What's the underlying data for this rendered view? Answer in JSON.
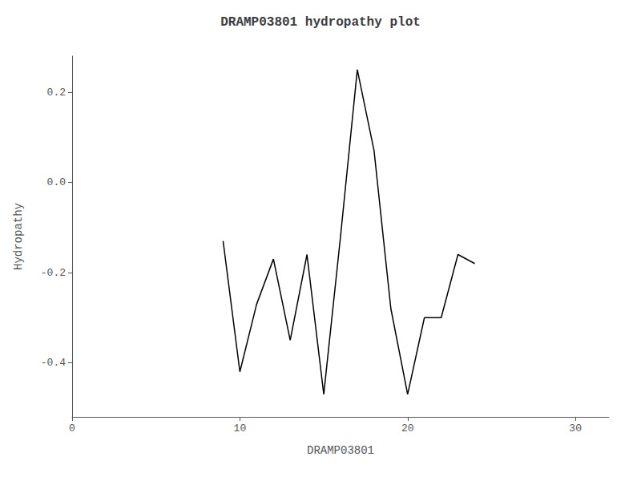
{
  "chart_data": {
    "type": "line",
    "title": "DRAMP03801 hydropathy plot",
    "xlabel": "DRAMP03801",
    "ylabel": "Hydropathy",
    "xlim": [
      0,
      32
    ],
    "ylim": [
      -0.52,
      0.28
    ],
    "xticks": [
      0,
      10,
      20,
      30
    ],
    "yticks": [
      -0.4,
      -0.2,
      {
        "value": 0,
        "label": "0.0"
      },
      0.2
    ],
    "x": [
      9,
      10,
      11,
      12,
      13,
      14,
      15,
      16,
      17,
      18,
      19,
      20,
      21,
      22,
      23,
      24
    ],
    "values": [
      -0.13,
      -0.42,
      -0.27,
      -0.17,
      -0.35,
      -0.16,
      -0.47,
      -0.12,
      0.25,
      0.07,
      -0.28,
      -0.47,
      -0.3,
      -0.3,
      -0.16,
      -0.18
    ],
    "color": "#000000",
    "grid": false
  }
}
